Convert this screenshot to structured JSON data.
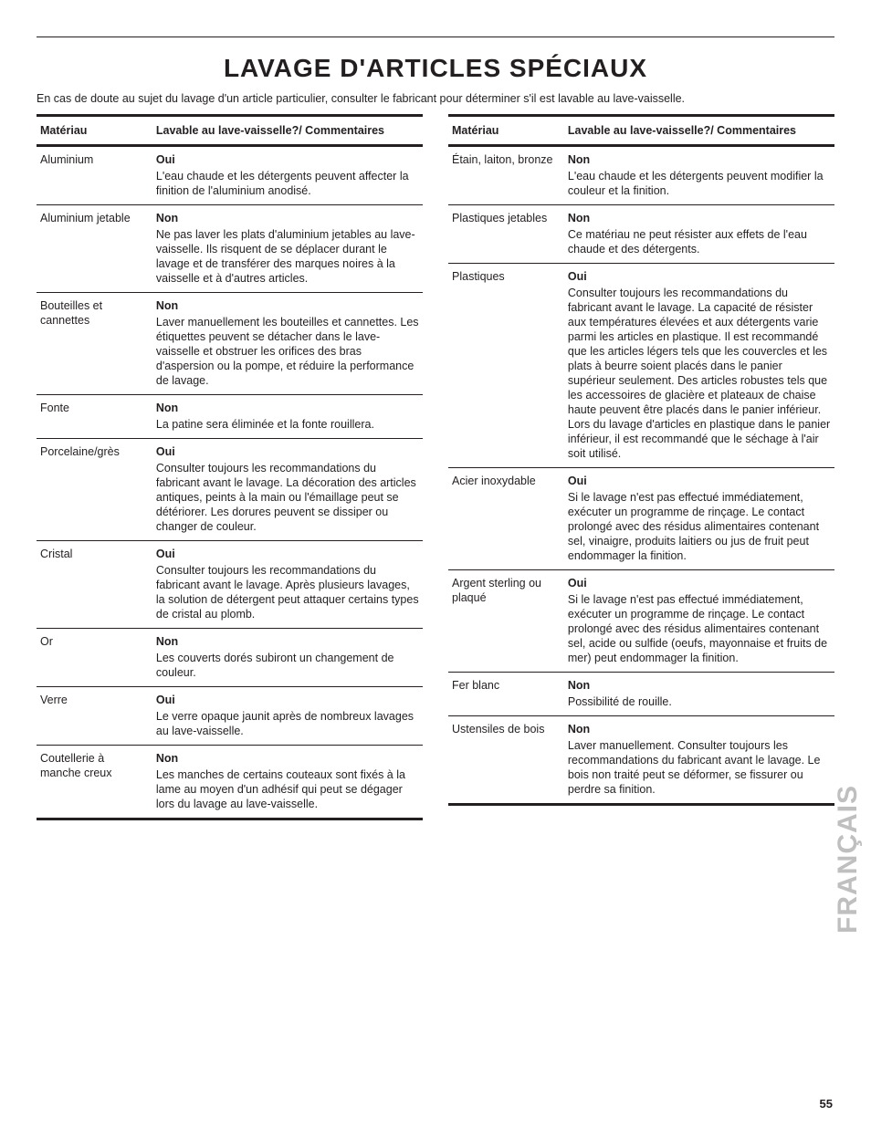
{
  "title": "LAVAGE D'ARTICLES SPÉCIAUX",
  "intro": "En cas de doute au sujet du lavage d'un article particulier, consulter le fabricant pour déterminer s'il est lavable au lave-vaisselle.",
  "header_material": "Matériau",
  "header_comments": "Lavable au lave-vaisselle?/\nCommentaires",
  "side_label": "FRANÇAIS",
  "page_number": "55",
  "colors": {
    "text": "#231f20",
    "rule": "#231f20",
    "side_label": "#bfbfbf",
    "background": "#ffffff"
  },
  "typography": {
    "title_fontsize": 28,
    "body_fontsize": 12.5,
    "side_fontsize": 30,
    "font_family": "Arial, Helvetica, sans-serif"
  },
  "left_rows": [
    {
      "material": "Aluminium",
      "answer": "Oui",
      "comment": "L'eau chaude et les détergents peuvent affecter la finition de l'aluminium anodisé."
    },
    {
      "material": "Aluminium jetable",
      "answer": "Non",
      "comment": "Ne pas laver les plats d'aluminium jetables au lave-vaisselle. Ils risquent de se déplacer durant le lavage et de transférer des marques noires à la vaisselle et à d'autres articles."
    },
    {
      "material": "Bouteilles et cannettes",
      "answer": "Non",
      "comment": "Laver manuellement les bouteilles et cannettes. Les étiquettes peuvent se détacher dans le lave-vaisselle et obstruer les orifices des bras d'aspersion ou la pompe, et réduire la performance de lavage."
    },
    {
      "material": "Fonte",
      "answer": "Non",
      "comment": "La patine sera éliminée et la fonte rouillera."
    },
    {
      "material": "Porcelaine/grès",
      "answer": "Oui",
      "comment": "Consulter toujours les recommandations du fabricant avant le lavage. La décoration des articles antiques, peints à la main ou l'émaillage peut se détériorer. Les dorures peuvent se dissiper ou changer de couleur."
    },
    {
      "material": "Cristal",
      "answer": "Oui",
      "comment": "Consulter toujours les recommandations du fabricant avant le lavage. Après plusieurs lavages, la solution de détergent peut attaquer certains types de cristal au plomb."
    },
    {
      "material": "Or",
      "answer": "Non",
      "comment": "Les couverts dorés subiront un changement de couleur."
    },
    {
      "material": "Verre",
      "answer": "Oui",
      "comment": "Le verre opaque jaunit après de nombreux lavages au lave-vaisselle."
    },
    {
      "material": "Coutellerie à manche creux",
      "answer": "Non",
      "comment": "Les manches de certains couteaux sont fixés à la lame au moyen d'un adhésif qui peut se dégager lors du lavage au lave-vaisselle."
    }
  ],
  "right_rows": [
    {
      "material": "Étain, laiton, bronze",
      "answer": "Non",
      "comment": "L'eau chaude et les détergents peuvent modifier la couleur et la finition."
    },
    {
      "material": "Plastiques jetables",
      "answer": "Non",
      "comment": "Ce matériau ne peut résister aux effets de l'eau chaude et des détergents."
    },
    {
      "material": "Plastiques",
      "answer": "Oui",
      "comment": "Consulter toujours les recommandations du fabricant avant le lavage. La capacité de résister aux températures élevées et aux détergents varie parmi les articles en plastique. Il est recommandé que les articles légers tels que les couvercles et les plats à beurre soient placés dans le panier supérieur seulement. Des articles robustes tels que les accessoires de glacière et plateaux de chaise haute peuvent être placés dans le panier inférieur. Lors du lavage d'articles en plastique dans le panier inférieur, il est recommandé que le séchage à l'air soit utilisé."
    },
    {
      "material": "Acier inoxydable",
      "answer": "Oui",
      "comment": "Si le lavage n'est pas effectué immédiatement, exécuter un programme de rinçage. Le contact prolongé avec des résidus alimentaires contenant sel, vinaigre, produits laitiers ou jus de fruit peut endommager la finition."
    },
    {
      "material": "Argent sterling ou plaqué",
      "answer": "Oui",
      "comment": "Si le lavage n'est pas effectué immédiatement, exécuter un programme de rinçage. Le contact prolongé avec des résidus alimentaires contenant sel, acide ou sulfide (oeufs, mayonnaise et fruits de mer) peut endommager la finition."
    },
    {
      "material": "Fer blanc",
      "answer": "Non",
      "comment": "Possibilité de rouille."
    },
    {
      "material": "Ustensiles de bois",
      "answer": "Non",
      "comment": "Laver manuellement. Consulter toujours les recommandations du fabricant avant le lavage. Le bois non traité peut se déformer, se fissurer ou perdre sa finition."
    }
  ]
}
